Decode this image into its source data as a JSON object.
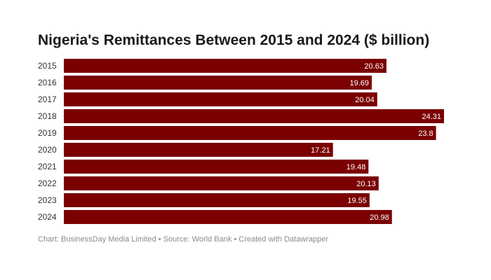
{
  "chart_data": {
    "type": "bar",
    "orientation": "horizontal",
    "title": "Nigeria's Remittances Between 2015 and 2024 ($ billion)",
    "categories": [
      "2015",
      "2016",
      "2017",
      "2018",
      "2019",
      "2020",
      "2021",
      "2022",
      "2023",
      "2024"
    ],
    "values": [
      20.63,
      19.69,
      20.04,
      24.31,
      23.8,
      17.21,
      19.48,
      20.13,
      19.55,
      20.98
    ],
    "value_labels": [
      "20.63",
      "19.69",
      "20.04",
      "24.31",
      "23.8",
      "17.21",
      "19.48",
      "20.13",
      "19.55",
      "20.98"
    ],
    "xlim": [
      0,
      24.31
    ],
    "bar_color": "#7b0000",
    "label_color": "#ffffff",
    "grid": false,
    "legend": "none"
  },
  "footer": {
    "text": "Chart: BusinessDay Media Limited • Source: World Bank • Created with Datawrapper"
  }
}
